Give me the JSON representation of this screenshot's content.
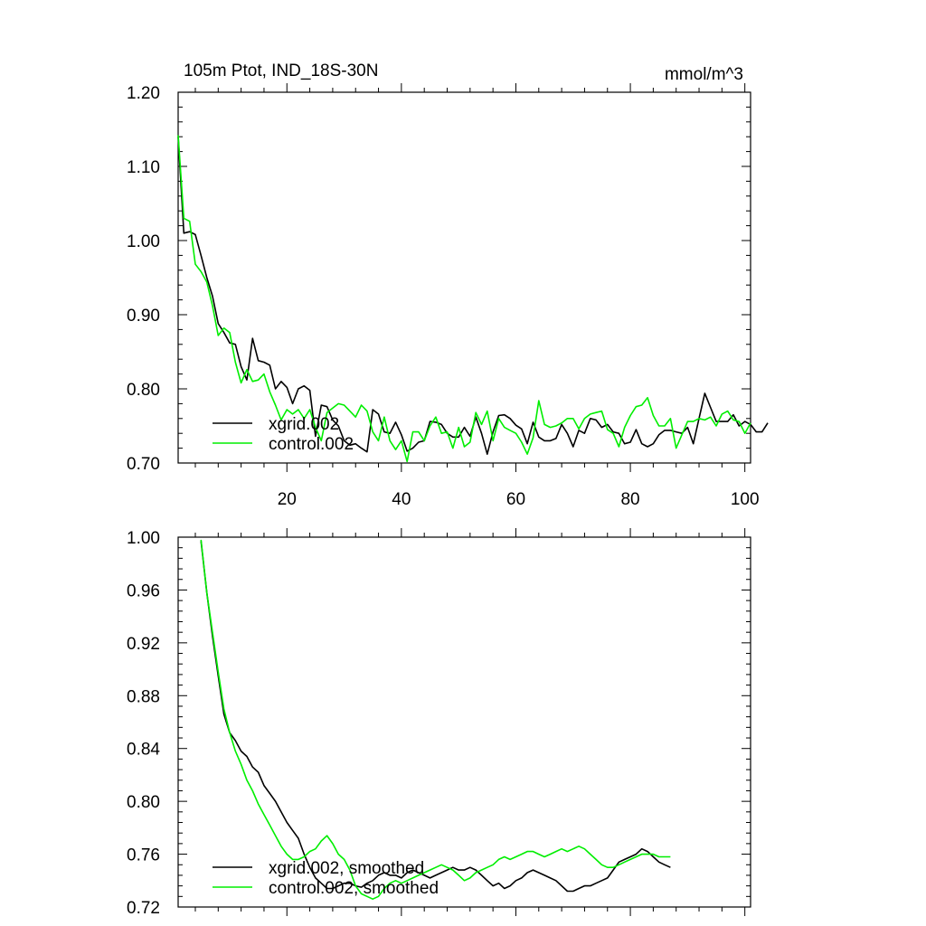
{
  "chart_data": [
    {
      "type": "line",
      "title": "105m Ptot, IND_18S-30N",
      "units": "mmol/m^3",
      "xlabel": "",
      "ylabel": "",
      "xlim": [
        1,
        101
      ],
      "ylim": [
        0.7,
        1.2
      ],
      "xticks": [
        20,
        40,
        60,
        80,
        100
      ],
      "yticks": [
        0.7,
        0.8,
        0.9,
        1.0,
        1.1,
        1.2
      ],
      "ytick_labels": [
        "0.70",
        "0.80",
        "0.90",
        "1.00",
        "1.10",
        "1.20"
      ],
      "legend_position": "bottom-left",
      "series": [
        {
          "name": "xgrid.002",
          "color": "#000000",
          "x_start": 1,
          "values": [
            1.14,
            1.01,
            1.012,
            1.008,
            0.98,
            0.95,
            0.925,
            0.888,
            0.876,
            0.862,
            0.86,
            0.83,
            0.812,
            0.868,
            0.838,
            0.836,
            0.832,
            0.8,
            0.81,
            0.802,
            0.78,
            0.8,
            0.804,
            0.798,
            0.736,
            0.778,
            0.776,
            0.758,
            0.75,
            0.73,
            0.724,
            0.726,
            0.72,
            0.715,
            0.772,
            0.766,
            0.742,
            0.74,
            0.755,
            0.738,
            0.716,
            0.72,
            0.728,
            0.73,
            0.756,
            0.755,
            0.752,
            0.74,
            0.735,
            0.735,
            0.748,
            0.736,
            0.762,
            0.74,
            0.712,
            0.742,
            0.764,
            0.765,
            0.76,
            0.751,
            0.746,
            0.726,
            0.755,
            0.735,
            0.73,
            0.73,
            0.733,
            0.752,
            0.74,
            0.722,
            0.744,
            0.74,
            0.76,
            0.758,
            0.748,
            0.752,
            0.742,
            0.74,
            0.726,
            0.728,
            0.745,
            0.726,
            0.722,
            0.726,
            0.738,
            0.744,
            0.744,
            0.742,
            0.74,
            0.748,
            0.726,
            0.76,
            0.794,
            0.775,
            0.756,
            0.756,
            0.756,
            0.765,
            0.75,
            0.756,
            0.752,
            0.742,
            0.742,
            0.754
          ]
        },
        {
          "name": "control.002",
          "color": "#00ee00",
          "x_start": 1,
          "values": [
            1.142,
            1.03,
            1.026,
            0.968,
            0.958,
            0.944,
            0.912,
            0.872,
            0.882,
            0.876,
            0.836,
            0.808,
            0.826,
            0.81,
            0.812,
            0.82,
            0.796,
            0.778,
            0.758,
            0.772,
            0.766,
            0.772,
            0.76,
            0.772,
            0.748,
            0.73,
            0.768,
            0.774,
            0.78,
            0.778,
            0.77,
            0.762,
            0.778,
            0.77,
            0.742,
            0.73,
            0.762,
            0.73,
            0.718,
            0.73,
            0.702,
            0.742,
            0.742,
            0.73,
            0.75,
            0.762,
            0.74,
            0.742,
            0.72,
            0.748,
            0.722,
            0.728,
            0.768,
            0.752,
            0.77,
            0.73,
            0.76,
            0.748,
            0.744,
            0.74,
            0.728,
            0.712,
            0.734,
            0.784,
            0.752,
            0.748,
            0.75,
            0.754,
            0.76,
            0.76,
            0.746,
            0.76,
            0.766,
            0.768,
            0.77,
            0.745,
            0.74,
            0.722,
            0.748,
            0.764,
            0.776,
            0.778,
            0.788,
            0.764,
            0.75,
            0.75,
            0.76,
            0.72,
            0.738,
            0.756,
            0.756,
            0.76,
            0.758,
            0.762,
            0.75,
            0.766,
            0.77,
            0.758,
            0.756,
            0.74,
            0.754
          ]
        }
      ]
    },
    {
      "type": "line",
      "title": "",
      "xlabel": "",
      "ylabel": "",
      "xlim": [
        1,
        101
      ],
      "ylim": [
        0.72,
        1.0
      ],
      "xticks": [
        20,
        40,
        60,
        80,
        100
      ],
      "yticks": [
        0.72,
        0.76,
        0.8,
        0.84,
        0.88,
        0.92,
        0.96,
        1.0
      ],
      "ytick_labels": [
        "0.72",
        "0.76",
        "0.80",
        "0.84",
        "0.88",
        "0.92",
        "0.96",
        "1.00"
      ],
      "legend_position": "bottom-left",
      "series": [
        {
          "name": "xgrid.002, smoothed",
          "color": "#000000",
          "x_start": 5,
          "values": [
            0.997,
            0.958,
            0.925,
            0.895,
            0.866,
            0.852,
            0.846,
            0.838,
            0.834,
            0.826,
            0.822,
            0.812,
            0.806,
            0.8,
            0.792,
            0.784,
            0.778,
            0.772,
            0.76,
            0.75,
            0.742,
            0.738,
            0.734,
            0.734,
            0.736,
            0.738,
            0.738,
            0.736,
            0.735,
            0.738,
            0.74,
            0.744,
            0.746,
            0.744,
            0.744,
            0.742,
            0.746,
            0.748,
            0.746,
            0.744,
            0.742,
            0.744,
            0.746,
            0.748,
            0.75,
            0.748,
            0.748,
            0.75,
            0.748,
            0.744,
            0.74,
            0.736,
            0.738,
            0.734,
            0.736,
            0.74,
            0.742,
            0.746,
            0.748,
            0.746,
            0.744,
            0.742,
            0.74,
            0.736,
            0.732,
            0.732,
            0.734,
            0.736,
            0.736,
            0.738,
            0.74,
            0.742,
            0.748,
            0.754,
            0.756,
            0.758,
            0.76,
            0.764,
            0.762,
            0.758,
            0.754,
            0.752,
            0.75
          ]
        },
        {
          "name": "control.002, smoothed",
          "color": "#00ee00",
          "x_start": 5,
          "values": [
            0.998,
            0.958,
            0.928,
            0.898,
            0.87,
            0.852,
            0.838,
            0.828,
            0.816,
            0.808,
            0.798,
            0.79,
            0.782,
            0.774,
            0.766,
            0.76,
            0.756,
            0.756,
            0.758,
            0.762,
            0.764,
            0.77,
            0.774,
            0.768,
            0.76,
            0.756,
            0.748,
            0.736,
            0.73,
            0.728,
            0.726,
            0.728,
            0.734,
            0.738,
            0.74,
            0.738,
            0.74,
            0.742,
            0.744,
            0.746,
            0.748,
            0.75,
            0.752,
            0.75,
            0.748,
            0.744,
            0.74,
            0.742,
            0.746,
            0.748,
            0.75,
            0.752,
            0.756,
            0.758,
            0.756,
            0.758,
            0.76,
            0.762,
            0.762,
            0.76,
            0.758,
            0.76,
            0.762,
            0.764,
            0.762,
            0.764,
            0.766,
            0.764,
            0.76,
            0.756,
            0.752,
            0.75,
            0.75,
            0.752,
            0.754,
            0.756,
            0.758,
            0.76,
            0.76,
            0.76,
            0.758,
            0.758,
            0.758
          ]
        }
      ]
    }
  ]
}
